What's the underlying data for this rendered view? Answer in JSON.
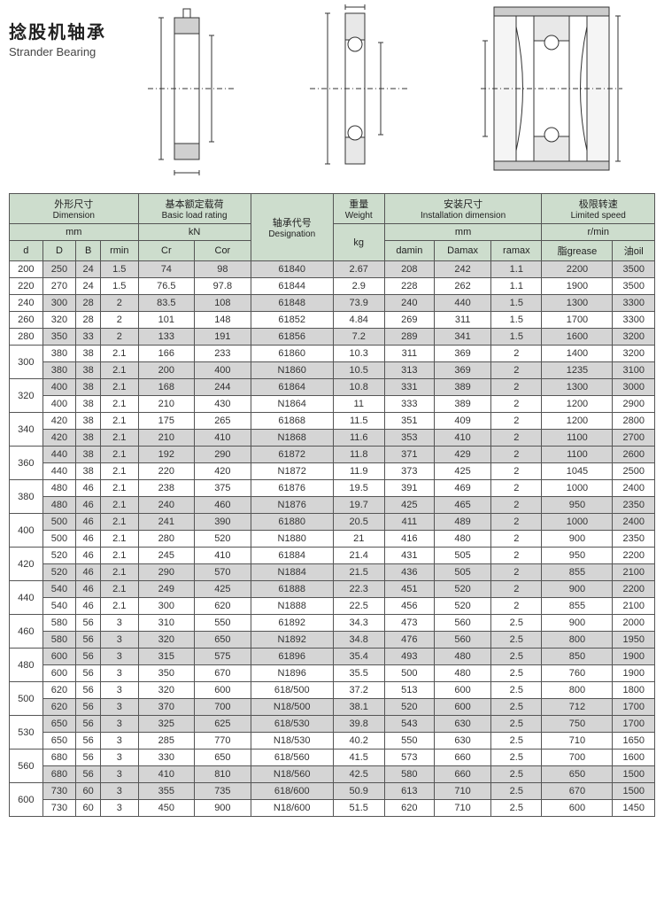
{
  "title": {
    "cn": "捻股机轴承",
    "en": "Strander Bearing"
  },
  "headers": {
    "dimension_cn": "外形尺寸",
    "dimension_en": "Dimension",
    "load_cn": "基本额定载荷",
    "load_en": "Basic load rating",
    "desig_cn": "轴承代号",
    "desig_en": "Designation",
    "weight_cn": "重量",
    "weight_en": "Weight",
    "install_cn": "安装尺寸",
    "install_en": "Installation dimension",
    "speed_cn": "极限转速",
    "speed_en": "Limited speed",
    "mm": "mm",
    "kN": "kN",
    "kg": "kg",
    "rmin": "r/min",
    "d": "d",
    "D": "D",
    "B": "B",
    "rmin_h": "rmin",
    "Cr": "Cr",
    "Cor": "Cor",
    "damin": "damin",
    "Damax": "Damax",
    "ramax": "ramax",
    "grease": "脂grease",
    "oil": "油oil"
  },
  "groups": [
    {
      "d": "200",
      "shade": false,
      "rows": [
        [
          "250",
          "24",
          "1.5",
          "74",
          "98",
          "61840",
          "2.67",
          "208",
          "242",
          "1.1",
          "2200",
          "3500"
        ]
      ]
    },
    {
      "d": "220",
      "shade": true,
      "rows": [
        [
          "270",
          "24",
          "1.5",
          "76.5",
          "97.8",
          "61844",
          "2.9",
          "228",
          "262",
          "1.1",
          "1900",
          "3500"
        ]
      ]
    },
    {
      "d": "240",
      "shade": false,
      "rows": [
        [
          "300",
          "28",
          "2",
          "83.5",
          "108",
          "61848",
          "73.9",
          "240",
          "440",
          "1.5",
          "1300",
          "3300"
        ]
      ]
    },
    {
      "d": "260",
      "shade": true,
      "rows": [
        [
          "320",
          "28",
          "2",
          "101",
          "148",
          "61852",
          "4.84",
          "269",
          "311",
          "1.5",
          "1700",
          "3300"
        ]
      ]
    },
    {
      "d": "280",
      "shade": false,
      "rows": [
        [
          "350",
          "33",
          "2",
          "133",
          "191",
          "61856",
          "7.2",
          "289",
          "341",
          "1.5",
          "1600",
          "3200"
        ]
      ]
    },
    {
      "d": "300",
      "shade": true,
      "rows": [
        [
          "380",
          "38",
          "2.1",
          "166",
          "233",
          "61860",
          "10.3",
          "311",
          "369",
          "2",
          "1400",
          "3200"
        ],
        [
          "380",
          "38",
          "2.1",
          "200",
          "400",
          "N1860",
          "10.5",
          "313",
          "369",
          "2",
          "1235",
          "3100"
        ]
      ]
    },
    {
      "d": "320",
      "shade": false,
      "rows": [
        [
          "400",
          "38",
          "2.1",
          "168",
          "244",
          "61864",
          "10.8",
          "331",
          "389",
          "2",
          "1300",
          "3000"
        ],
        [
          "400",
          "38",
          "2.1",
          "210",
          "430",
          "N1864",
          "11",
          "333",
          "389",
          "2",
          "1200",
          "2900"
        ]
      ]
    },
    {
      "d": "340",
      "shade": true,
      "rows": [
        [
          "420",
          "38",
          "2.1",
          "175",
          "265",
          "61868",
          "11.5",
          "351",
          "409",
          "2",
          "1200",
          "2800"
        ],
        [
          "420",
          "38",
          "2.1",
          "210",
          "410",
          "N1868",
          "11.6",
          "353",
          "410",
          "2",
          "1100",
          "2700"
        ]
      ]
    },
    {
      "d": "360",
      "shade": false,
      "rows": [
        [
          "440",
          "38",
          "2.1",
          "192",
          "290",
          "61872",
          "11.8",
          "371",
          "429",
          "2",
          "1100",
          "2600"
        ],
        [
          "440",
          "38",
          "2.1",
          "220",
          "420",
          "N1872",
          "11.9",
          "373",
          "425",
          "2",
          "1045",
          "2500"
        ]
      ]
    },
    {
      "d": "380",
      "shade": true,
      "rows": [
        [
          "480",
          "46",
          "2.1",
          "238",
          "375",
          "61876",
          "19.5",
          "391",
          "469",
          "2",
          "1000",
          "2400"
        ],
        [
          "480",
          "46",
          "2.1",
          "240",
          "460",
          "N1876",
          "19.7",
          "425",
          "465",
          "2",
          "950",
          "2350"
        ]
      ]
    },
    {
      "d": "400",
      "shade": false,
      "rows": [
        [
          "500",
          "46",
          "2.1",
          "241",
          "390",
          "61880",
          "20.5",
          "411",
          "489",
          "2",
          "1000",
          "2400"
        ],
        [
          "500",
          "46",
          "2.1",
          "280",
          "520",
          "N1880",
          "21",
          "416",
          "480",
          "2",
          "900",
          "2350"
        ]
      ]
    },
    {
      "d": "420",
      "shade": true,
      "rows": [
        [
          "520",
          "46",
          "2.1",
          "245",
          "410",
          "61884",
          "21.4",
          "431",
          "505",
          "2",
          "950",
          "2200"
        ],
        [
          "520",
          "46",
          "2.1",
          "290",
          "570",
          "N1884",
          "21.5",
          "436",
          "505",
          "2",
          "855",
          "2100"
        ]
      ]
    },
    {
      "d": "440",
      "shade": false,
      "rows": [
        [
          "540",
          "46",
          "2.1",
          "249",
          "425",
          "61888",
          "22.3",
          "451",
          "520",
          "2",
          "900",
          "2200"
        ],
        [
          "540",
          "46",
          "2.1",
          "300",
          "620",
          "N1888",
          "22.5",
          "456",
          "520",
          "2",
          "855",
          "2100"
        ]
      ]
    },
    {
      "d": "460",
      "shade": true,
      "rows": [
        [
          "580",
          "56",
          "3",
          "310",
          "550",
          "61892",
          "34.3",
          "473",
          "560",
          "2.5",
          "900",
          "2000"
        ],
        [
          "580",
          "56",
          "3",
          "320",
          "650",
          "N1892",
          "34.8",
          "476",
          "560",
          "2.5",
          "800",
          "1950"
        ]
      ]
    },
    {
      "d": "480",
      "shade": false,
      "rows": [
        [
          "600",
          "56",
          "3",
          "315",
          "575",
          "61896",
          "35.4",
          "493",
          "480",
          "2.5",
          "850",
          "1900"
        ],
        [
          "600",
          "56",
          "3",
          "350",
          "670",
          "N1896",
          "35.5",
          "500",
          "480",
          "2.5",
          "760",
          "1900"
        ]
      ]
    },
    {
      "d": "500",
      "shade": true,
      "rows": [
        [
          "620",
          "56",
          "3",
          "320",
          "600",
          "618/500",
          "37.2",
          "513",
          "600",
          "2.5",
          "800",
          "1800"
        ],
        [
          "620",
          "56",
          "3",
          "370",
          "700",
          "N18/500",
          "38.1",
          "520",
          "600",
          "2.5",
          "712",
          "1700"
        ]
      ]
    },
    {
      "d": "530",
      "shade": false,
      "rows": [
        [
          "650",
          "56",
          "3",
          "325",
          "625",
          "618/530",
          "39.8",
          "543",
          "630",
          "2.5",
          "750",
          "1700"
        ],
        [
          "650",
          "56",
          "3",
          "285",
          "770",
          "N18/530",
          "40.2",
          "550",
          "630",
          "2.5",
          "710",
          "1650"
        ]
      ]
    },
    {
      "d": "560",
      "shade": true,
      "rows": [
        [
          "680",
          "56",
          "3",
          "330",
          "650",
          "618/560",
          "41.5",
          "573",
          "660",
          "2.5",
          "700",
          "1600"
        ],
        [
          "680",
          "56",
          "3",
          "410",
          "810",
          "N18/560",
          "42.5",
          "580",
          "660",
          "2.5",
          "650",
          "1500"
        ]
      ]
    },
    {
      "d": "600",
      "shade": false,
      "rows": [
        [
          "730",
          "60",
          "3",
          "355",
          "735",
          "618/600",
          "50.9",
          "613",
          "710",
          "2.5",
          "670",
          "1500"
        ],
        [
          "730",
          "60",
          "3",
          "450",
          "900",
          "N18/600",
          "51.5",
          "620",
          "710",
          "2.5",
          "600",
          "1450"
        ]
      ]
    }
  ]
}
